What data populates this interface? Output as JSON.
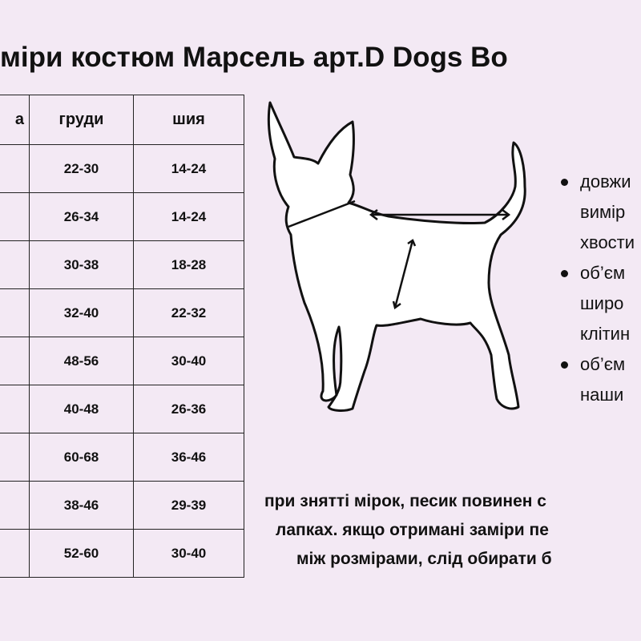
{
  "title": "міри костюм Марсель арт.D Dogs Bo",
  "table": {
    "headers": [
      "а",
      "груди",
      "шия"
    ],
    "rows": [
      [
        "",
        "22-30",
        "14-24"
      ],
      [
        "",
        "26-34",
        "14-24"
      ],
      [
        "",
        "30-38",
        "18-28"
      ],
      [
        "",
        "32-40",
        "22-32"
      ],
      [
        "",
        "48-56",
        "30-40"
      ],
      [
        "",
        "40-48",
        "26-36"
      ],
      [
        "",
        "60-68",
        "36-46"
      ],
      [
        "",
        "38-46",
        "29-39"
      ],
      [
        "",
        "52-60",
        "30-40"
      ]
    ]
  },
  "bullets": [
    [
      "довжи",
      "вимір",
      "хвости"
    ],
    [
      "об’єм",
      "широ",
      "клітин"
    ],
    [
      "об’єм",
      "наши"
    ]
  ],
  "note": [
    "при знятті мірок, песик повинен с",
    "лапках. якщо отримані заміри пе",
    "між розмірами, слід обирати б"
  ]
}
